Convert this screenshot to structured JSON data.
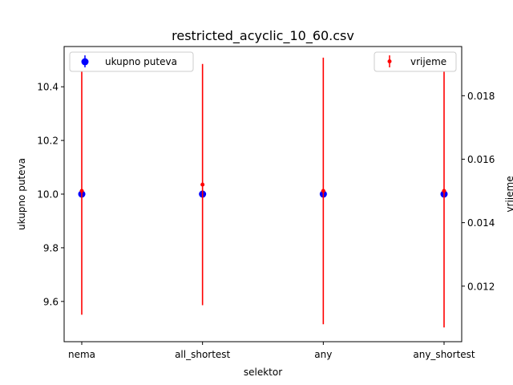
{
  "chart_data": {
    "type": "scatter",
    "title": "restricted_acyclic_10_60.csv",
    "xlabel": "selektor",
    "categories": [
      "nema",
      "all_shortest",
      "any",
      "any_shortest"
    ],
    "left_axis": {
      "label": "ukupno puteva",
      "ylim": [
        9.45,
        10.55
      ],
      "ticks": [
        9.6,
        9.8,
        10.0,
        10.2,
        10.4
      ],
      "tick_labels": [
        "9.6",
        "9.8",
        "10.0",
        "10.2",
        "10.4"
      ]
    },
    "right_axis": {
      "label": "vrijeme",
      "ylim": [
        0.01025,
        0.01955
      ],
      "ticks": [
        0.012,
        0.014,
        0.016,
        0.018
      ],
      "tick_labels": [
        "0.012",
        "0.014",
        "0.016",
        "0.018"
      ]
    },
    "series": [
      {
        "name": "ukupno puteva",
        "axis": "left",
        "color": "#0000ff",
        "marker": "circle-large",
        "values": [
          10.0,
          10.0,
          10.0,
          10.0
        ],
        "errors": [
          0,
          0,
          0,
          0
        ]
      },
      {
        "name": "vrijeme",
        "axis": "right",
        "color": "#ff0000",
        "marker": "circle-small",
        "values": [
          0.015,
          0.0152,
          0.015,
          0.015
        ],
        "errors": [
          0.0039,
          0.0038,
          0.0042,
          0.0043
        ]
      }
    ],
    "legends": [
      {
        "placement": "upper-left",
        "series": "ukupno puteva"
      },
      {
        "placement": "upper-right",
        "series": "vrijeme"
      }
    ],
    "grid": false
  }
}
